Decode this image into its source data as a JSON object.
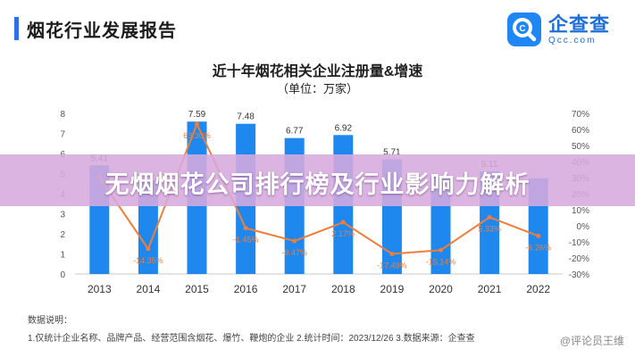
{
  "header": {
    "title": "烟花行业发展报告"
  },
  "brand": {
    "name": "企查查",
    "domain": "Qcc.com",
    "logo_icon": "magnifier-logo-icon",
    "color": "#1e86f5"
  },
  "banner": {
    "text": "无烟烟花公司排行榜及行业影响力解析"
  },
  "notes": {
    "label": "数据说明：",
    "text": "1.仅统计企业名称、品牌产品、经营范围含烟花、爆竹、鞭炮的企业    2.统计时间：2023/12/26    3.数据来源：企查查"
  },
  "watermark": "@评论员王维",
  "chart_data": {
    "type": "bar",
    "title": "近十年烟花相关企业注册量&增速",
    "subtitle": "（单位：万家）",
    "categories": [
      "2013",
      "2014",
      "2015",
      "2016",
      "2017",
      "2018",
      "2019",
      "2020",
      "2021",
      "2022"
    ],
    "series": [
      {
        "type": "bar",
        "axis": "left",
        "color": "#1e88ee",
        "values": [
          5.41,
          4.65,
          7.59,
          7.48,
          6.77,
          6.92,
          5.71,
          4.85,
          5.11,
          4.77
        ],
        "labels": [
          "5.41",
          "",
          "7.59",
          "7.48",
          "6.77",
          "6.92",
          "5.71",
          "",
          "5.11",
          ""
        ]
      },
      {
        "type": "line",
        "axis": "right",
        "color": "#f07d3a",
        "values": [
          30.2,
          -14.35,
          63.3,
          -1.45,
          -9.47,
          2.17,
          -17.49,
          -15.14,
          5.33,
          -6.26
        ],
        "labels": [
          "",
          "-14.35%",
          "63.30%",
          "-1.45%",
          "-9.47%",
          "2.17%",
          "-17.49%",
          "-15.14%",
          "5.33%",
          "-6.26%"
        ]
      }
    ],
    "left_axis": {
      "ticks": [
        "0",
        "1",
        "2",
        "3",
        "4",
        "5",
        "6",
        "7",
        "8"
      ],
      "ylim": [
        0,
        8
      ]
    },
    "right_axis": {
      "ticks": [
        "-30%",
        "-20%",
        "-10%",
        "0%",
        "10%",
        "20%",
        "30%",
        "40%",
        "50%",
        "60%",
        "70%"
      ],
      "ylim": [
        -30,
        70
      ]
    },
    "grid": false,
    "legend": "none"
  }
}
